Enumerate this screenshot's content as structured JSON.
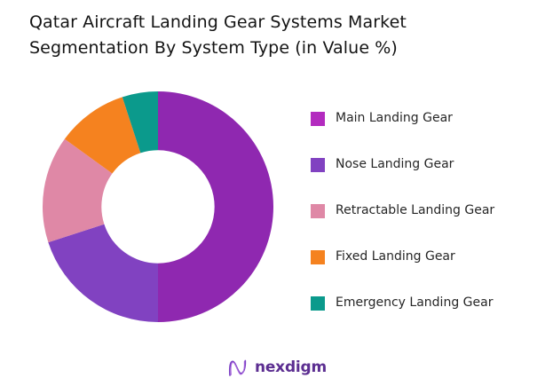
{
  "header": {
    "line1": "Qatar Aircraft Landing Gear Systems Market",
    "line2": "Segmentation By System Type (in Value %)"
  },
  "chart_data": {
    "type": "pie",
    "subtype": "donut",
    "title": "Qatar Aircraft Landing Gear Systems Market Segmentation By System Type (in Value %)",
    "unit": "percent of market value",
    "start_angle_deg": 0,
    "direction": "clockwise",
    "inner_radius_ratio": 0.49,
    "legend_position": "right",
    "data_labels_shown": false,
    "series": [
      {
        "label": "Main Landing Gear",
        "value": 50,
        "color": "#8F28B0",
        "legend_color": "#B32BBF"
      },
      {
        "label": "Nose Landing Gear",
        "value": 20,
        "color": "#8142C1",
        "legend_color": "#8142C1"
      },
      {
        "label": "Retractable Landing Gear",
        "value": 15,
        "color": "#DF88A6",
        "legend_color": "#DF88A6"
      },
      {
        "label": "Fixed Landing Gear",
        "value": 10,
        "color": "#F5821F",
        "legend_color": "#F5821F"
      },
      {
        "label": "Emergency Landing Gear",
        "value": 5,
        "color": "#0B9A8C",
        "legend_color": "#0B9A8C"
      }
    ]
  },
  "footer": {
    "brand": "nexdigm",
    "brand_color": "#5C2E91",
    "mark_color": "#7B3FC4",
    "mark_color_light": "#B06FE0"
  }
}
